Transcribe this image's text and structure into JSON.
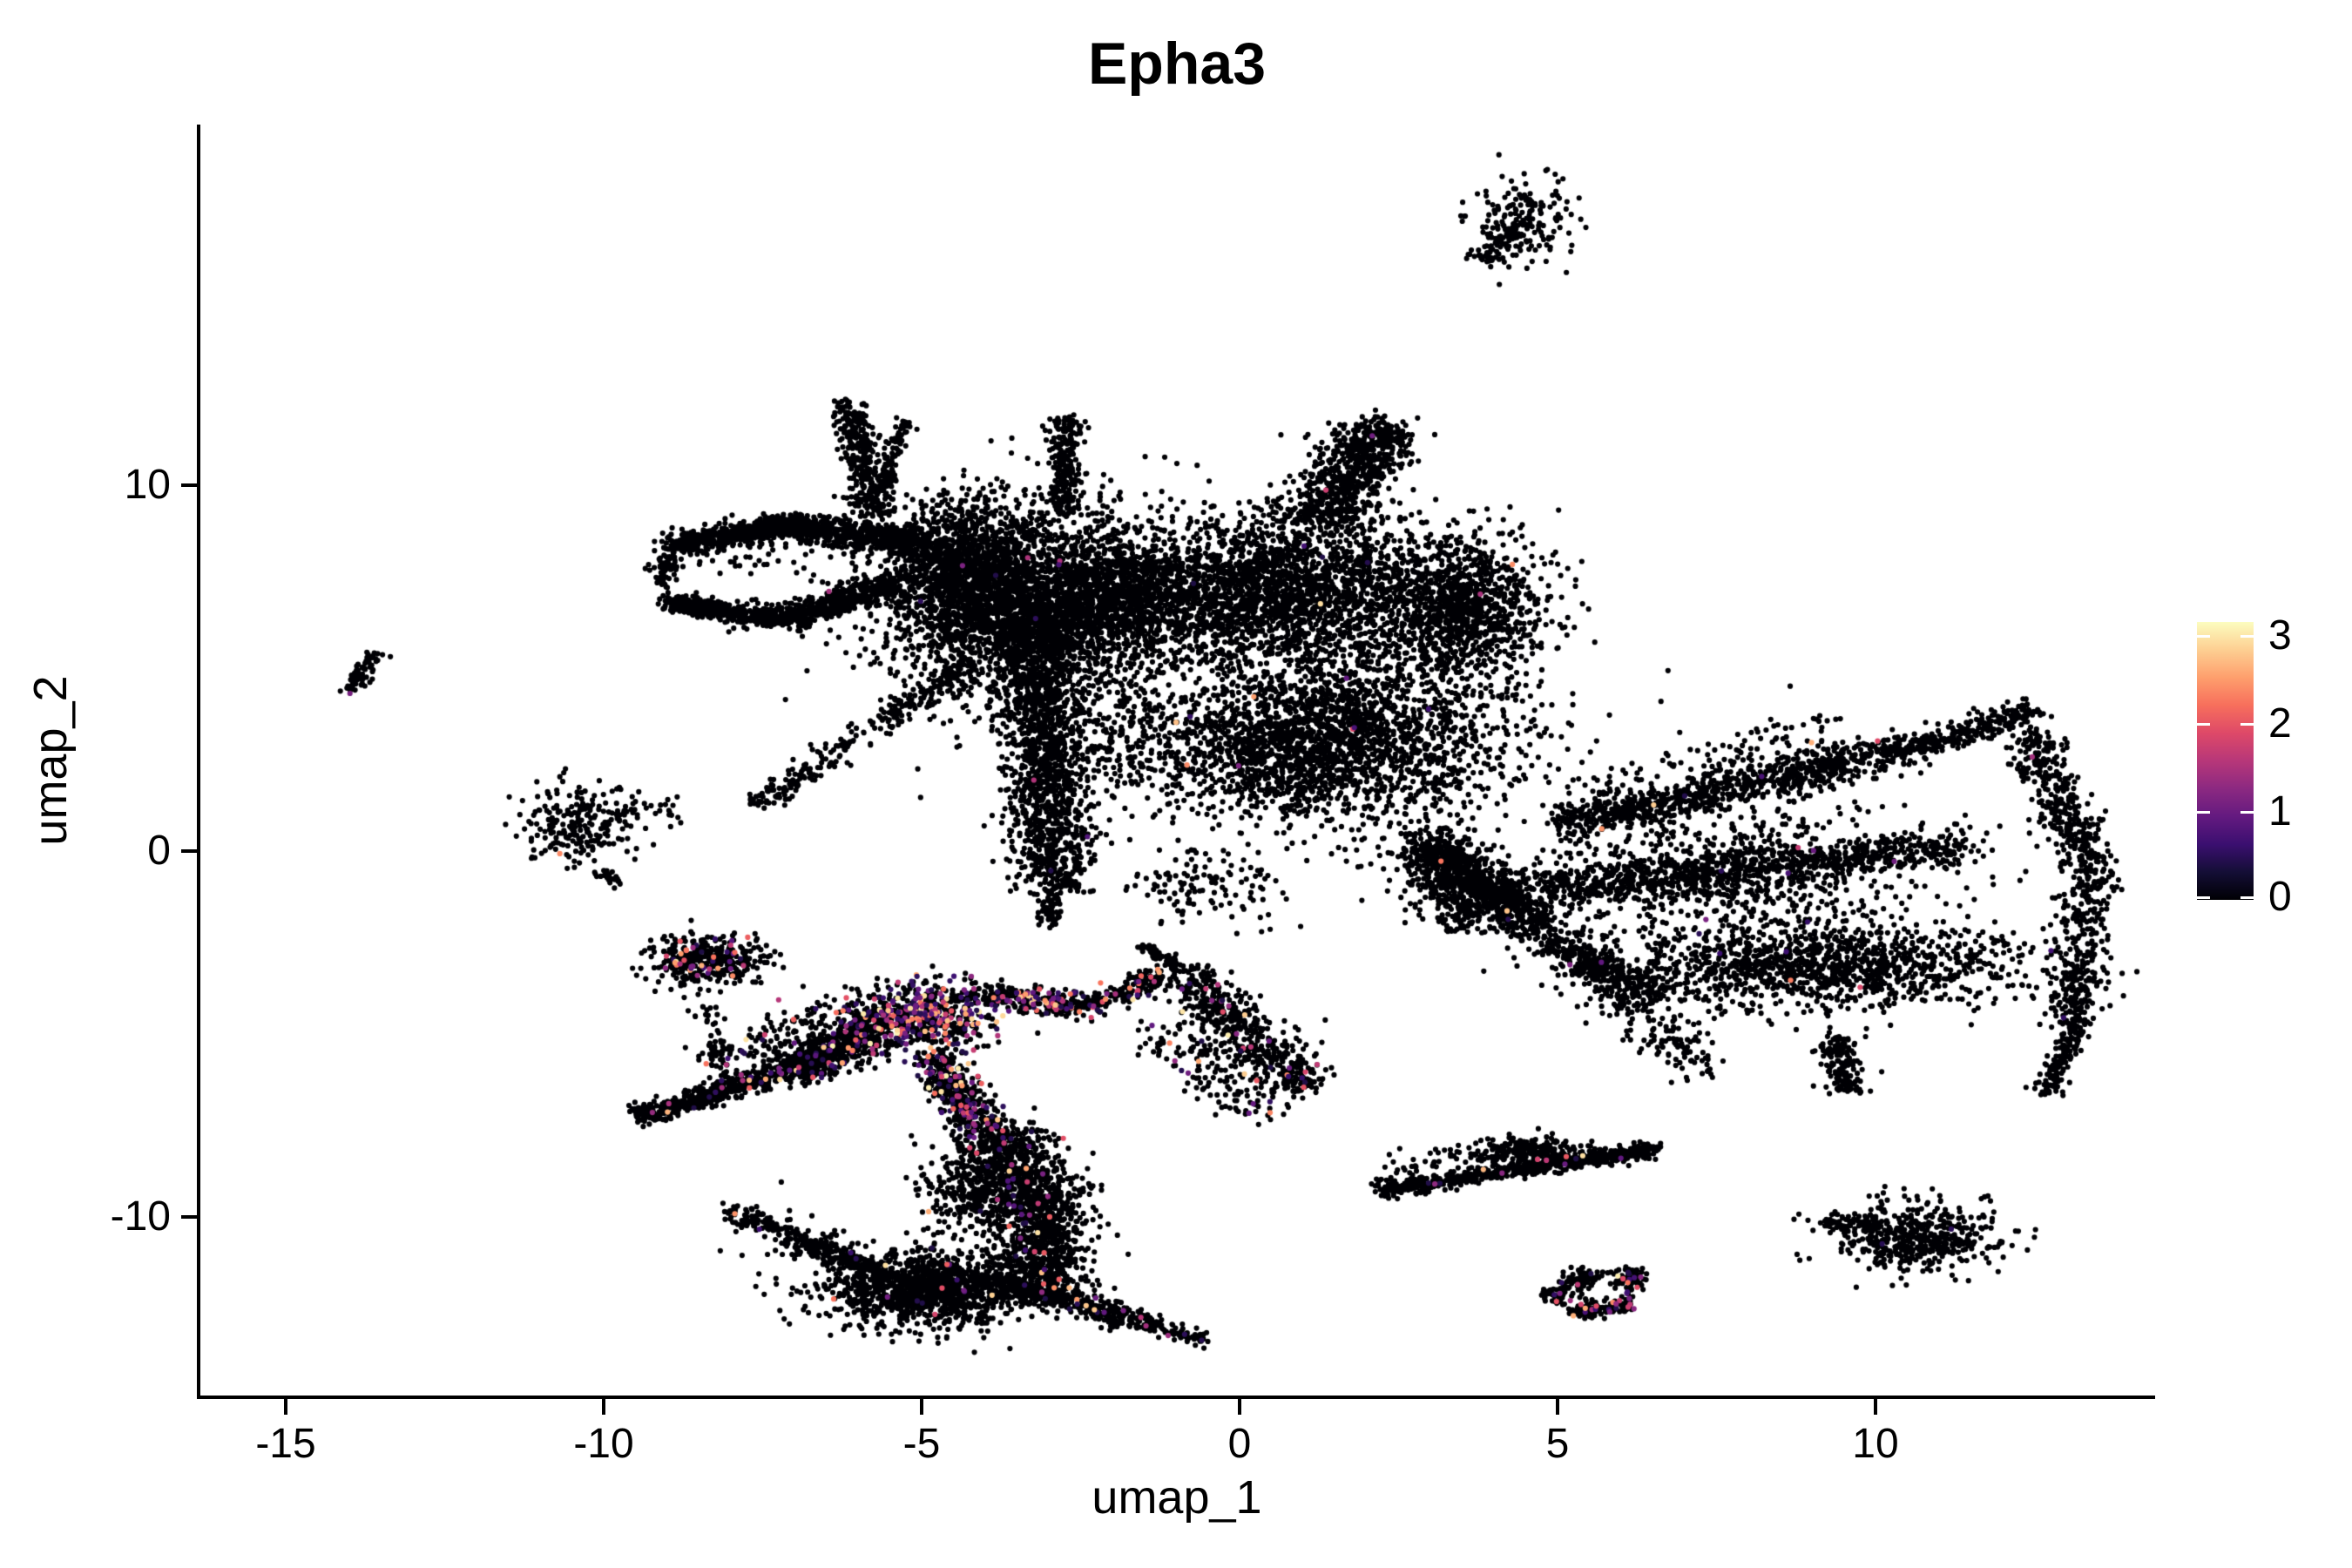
{
  "title": "Epha3",
  "axes": {
    "x": {
      "label": "umap_1",
      "tick_labels": [
        "-15",
        "-10",
        "-5",
        "0",
        "5",
        "10"
      ],
      "tick_values": [
        -15,
        -10,
        -5,
        0,
        5,
        10
      ]
    },
    "y": {
      "label": "umap_2",
      "tick_labels": [
        "10",
        "0",
        "-10"
      ],
      "tick_values": [
        10,
        0,
        -10
      ]
    }
  },
  "colorbar": {
    "labels": [
      "3",
      "2",
      "1",
      "0"
    ],
    "tick_values": [
      3,
      2,
      1,
      0
    ],
    "min": 0,
    "max": 3.17,
    "colormap": "magma",
    "stops": [
      "#000004",
      "#140e36",
      "#3b0f70",
      "#641a80",
      "#8c2981",
      "#b73779",
      "#de4968",
      "#f76f5c",
      "#fe9f6d",
      "#fdcf92",
      "#fcfdbf"
    ]
  },
  "chart_data": {
    "type": "scatter",
    "title": "Epha3",
    "xlabel": "umap_1",
    "ylabel": "umap_2",
    "xlim": [
      -16.4,
      14.3
    ],
    "ylim": [
      -14.9,
      19.9
    ],
    "x_ticks": [
      -15,
      -10,
      -5,
      0,
      5,
      10
    ],
    "y_ticks": [
      10,
      0,
      -10
    ],
    "grid": false,
    "legend_position": "right",
    "point_color_zero": "#000004",
    "expression_range": [
      0,
      3.17
    ],
    "points": [
      {
        "x": -13.99,
        "y": 4.31,
        "v": 1.1
      },
      {
        "x": -10.69,
        "y": -0.07,
        "v": 2.4
      }
    ],
    "clusters": [
      {
        "kind": "blob",
        "x": 4.51,
        "y": 17.31,
        "sx": 0.36,
        "sy": 0.6,
        "n": 170,
        "expr": 0
      },
      {
        "kind": "stroke",
        "x1": 3.82,
        "y1": 16.12,
        "x2": 4.37,
        "y2": 17.12,
        "w": 0.13,
        "n": 70,
        "expr": 0
      },
      {
        "kind": "blob",
        "x": 5.03,
        "y": 17.26,
        "sx": 0.03,
        "sy": 0.03,
        "n": 2,
        "expr": 0
      },
      {
        "kind": "stroke",
        "x1": -14.01,
        "y1": 4.4,
        "x2": -13.56,
        "y2": 5.45,
        "w": 0.1,
        "n": 75,
        "expr": 0
      },
      {
        "kind": "blob",
        "x": -10.41,
        "y": 0.71,
        "sx": 0.42,
        "sy": 0.55,
        "n": 230,
        "expr": 0.004
      },
      {
        "kind": "stroke",
        "x1": -9.84,
        "y1": 0.93,
        "x2": -8.78,
        "y2": 1.21,
        "w": 0.18,
        "n": 28,
        "expr": 0
      },
      {
        "kind": "stroke",
        "x1": -10.08,
        "y1": -0.55,
        "x2": -9.73,
        "y2": -0.93,
        "w": 0.07,
        "n": 24,
        "expr": 0
      },
      {
        "kind": "stroke",
        "x1": -8.97,
        "y1": 8.31,
        "x2": -7.1,
        "y2": 8.9,
        "w": 0.16,
        "n": 520,
        "expr": 0.002
      },
      {
        "kind": "stroke",
        "x1": -7.1,
        "y1": 8.9,
        "x2": -4.9,
        "y2": 8.45,
        "w": 0.18,
        "n": 560,
        "expr": 0.002
      },
      {
        "kind": "blob",
        "x": -9.06,
        "y": 7.74,
        "sx": 0.1,
        "sy": 0.3,
        "n": 70,
        "expr": 0
      },
      {
        "kind": "blob",
        "x": -7.8,
        "y": 7.9,
        "sx": 0.5,
        "sy": 0.25,
        "n": 25,
        "expr": 0
      },
      {
        "kind": "stroke",
        "x1": -9.0,
        "y1": 6.79,
        "x2": -7.16,
        "y2": 6.31,
        "w": 0.15,
        "n": 430,
        "expr": 0.002
      },
      {
        "kind": "stroke",
        "x1": -7.16,
        "y1": 6.31,
        "x2": -5.38,
        "y2": 7.36,
        "w": 0.17,
        "n": 430,
        "expr": 0.002
      },
      {
        "kind": "stroke",
        "x1": -5.69,
        "y1": 9.21,
        "x2": -6.18,
        "y2": 12.26,
        "w": 0.15,
        "n": 330,
        "expr": 0.002
      },
      {
        "kind": "stroke",
        "x1": -5.62,
        "y1": 9.93,
        "x2": -5.25,
        "y2": 11.83,
        "w": 0.09,
        "n": 90,
        "expr": 0
      },
      {
        "kind": "blob",
        "x": -4.29,
        "y": 7.79,
        "sx": 0.65,
        "sy": 0.85,
        "n": 950,
        "expr": 0.002
      },
      {
        "kind": "blob",
        "x": -3.53,
        "y": 6.83,
        "sx": 1.15,
        "sy": 1.35,
        "n": 2400,
        "expr": 0.002
      },
      {
        "kind": "stroke",
        "x1": -4.15,
        "y1": 5.17,
        "x2": -7.58,
        "y2": 1.31,
        "w": 0.14,
        "n": 270,
        "expr": 0.002
      },
      {
        "kind": "stroke",
        "x1": -3.19,
        "y1": 6.6,
        "x2": -2.92,
        "y2": -1.02,
        "w": 0.33,
        "n": 1500,
        "expr": 0.002
      },
      {
        "kind": "stroke",
        "x1": -2.95,
        "y1": -1.02,
        "x2": -3.01,
        "y2": -1.98,
        "w": 0.1,
        "n": 60,
        "expr": 0
      },
      {
        "kind": "stroke",
        "x1": -2.75,
        "y1": 9.21,
        "x2": -2.75,
        "y2": 11.83,
        "w": 0.12,
        "n": 230,
        "expr": 0
      },
      {
        "kind": "blob",
        "x": -2.03,
        "y": 6.83,
        "sx": 0.5,
        "sy": 0.8,
        "n": 520,
        "expr": 0.002
      },
      {
        "kind": "blob",
        "x": 0.37,
        "y": 7.07,
        "sx": 1.5,
        "sy": 1.05,
        "n": 2700,
        "expr": 0.002
      },
      {
        "kind": "blob",
        "x": 1.33,
        "y": 3.02,
        "sx": 1.45,
        "sy": 1.15,
        "n": 2500,
        "expr": 0.002
      },
      {
        "kind": "blob",
        "x": 3.52,
        "y": 6.6,
        "sx": 0.65,
        "sy": 0.95,
        "n": 1000,
        "expr": 0.002
      },
      {
        "kind": "stroke",
        "x1": 1.19,
        "y1": 8.98,
        "x2": 2.29,
        "y2": 11.6,
        "w": 0.33,
        "n": 720,
        "expr": 0.002
      },
      {
        "kind": "stroke",
        "x1": 2.97,
        "y1": 0.4,
        "x2": 3.52,
        "y2": -1.98,
        "w": 0.33,
        "n": 430,
        "expr": 0.002
      },
      {
        "kind": "blob",
        "x": -0.59,
        "y": -1.02,
        "sx": 0.8,
        "sy": 0.5,
        "n": 130,
        "expr": 0
      },
      {
        "kind": "blob",
        "x": -1.82,
        "y": 3.02,
        "sx": 0.5,
        "sy": 0.9,
        "n": 160,
        "expr": 0
      },
      {
        "kind": "stroke",
        "x1": 3.18,
        "y1": 0.05,
        "x2": 4.62,
        "y2": -2.1,
        "w": 0.28,
        "n": 520,
        "expr": 0.004
      },
      {
        "kind": "stroke",
        "x1": 5.03,
        "y1": 0.64,
        "x2": 10.51,
        "y2": 2.79,
        "w": 0.26,
        "n": 850,
        "expr": 0.004
      },
      {
        "kind": "stroke",
        "x1": 5.5,
        "y1": 1.3,
        "x2": 9.5,
        "y2": 3.2,
        "w": 0.5,
        "n": 180,
        "expr": 0.004
      },
      {
        "kind": "stroke",
        "x1": 10.51,
        "y1": 2.79,
        "x2": 12.56,
        "y2": 3.86,
        "w": 0.18,
        "n": 240,
        "expr": 0.004
      },
      {
        "kind": "stroke",
        "x1": 12.43,
        "y1": 3.26,
        "x2": 13.38,
        "y2": -0.55,
        "w": 0.22,
        "n": 380,
        "expr": 0.004
      },
      {
        "kind": "stroke",
        "x1": 13.38,
        "y1": -0.55,
        "x2": 13.11,
        "y2": -4.83,
        "w": 0.2,
        "n": 330,
        "expr": 0.004
      },
      {
        "kind": "stroke",
        "x1": 13.11,
        "y1": -4.83,
        "x2": 12.7,
        "y2": -6.62,
        "w": 0.11,
        "n": 120,
        "expr": 0.004
      },
      {
        "kind": "stroke",
        "x1": 3.8,
        "y1": -1.26,
        "x2": 11.47,
        "y2": 0.17,
        "w": 0.28,
        "n": 950,
        "expr": 0.004
      },
      {
        "kind": "blob",
        "x": 9.14,
        "y": -3.17,
        "sx": 1.7,
        "sy": 0.62,
        "n": 1300,
        "expr": 0.004
      },
      {
        "kind": "stroke",
        "x1": 9.34,
        "y1": -5.07,
        "x2": 9.55,
        "y2": -6.62,
        "w": 0.16,
        "n": 150,
        "expr": 0
      },
      {
        "kind": "stroke",
        "x1": 5.3,
        "y1": -2.93,
        "x2": 7.36,
        "y2": -6.02,
        "w": 0.28,
        "n": 220,
        "expr": 0.004
      },
      {
        "kind": "stroke",
        "x1": 4.62,
        "y1": -2.1,
        "x2": 6.53,
        "y2": -3.88,
        "w": 0.24,
        "n": 300,
        "expr": 0.004
      },
      {
        "kind": "blob",
        "x": 7.77,
        "y": -0.55,
        "sx": 1.6,
        "sy": 0.85,
        "n": 650,
        "expr": 0.004
      },
      {
        "kind": "blob",
        "x": -8.37,
        "y": -2.98,
        "sx": 0.45,
        "sy": 0.32,
        "n": 380,
        "expr": 0.12
      },
      {
        "kind": "stroke",
        "x1": -8.53,
        "y1": -3.88,
        "x2": -7.99,
        "y2": -6.5,
        "w": 0.11,
        "n": 55,
        "expr": 0.08
      },
      {
        "kind": "stroke",
        "x1": -9.49,
        "y1": -7.26,
        "x2": -7.16,
        "y2": -6.02,
        "w": 0.15,
        "n": 430,
        "expr": 0.03
      },
      {
        "kind": "stroke",
        "x1": -7.16,
        "y1": -6.02,
        "x2": -5.8,
        "y2": -5.07,
        "w": 0.24,
        "n": 580,
        "expr": 0.06
      },
      {
        "kind": "stroke",
        "x1": -8.26,
        "y1": -5.67,
        "x2": -6.34,
        "y2": -4.48,
        "w": 0.3,
        "n": 130,
        "expr": 0.15
      },
      {
        "kind": "blob",
        "x": -6.0,
        "y": -4.79,
        "sx": 0.13,
        "sy": 0.1,
        "n": 45,
        "expr": 0.05
      },
      {
        "kind": "blob",
        "x": -5.08,
        "y": -4.55,
        "sx": 0.6,
        "sy": 0.46,
        "n": 700,
        "expr": 0.3
      },
      {
        "kind": "stroke",
        "x1": -4.29,
        "y1": -3.88,
        "x2": -2.37,
        "y2": -4.24,
        "w": 0.18,
        "n": 270,
        "expr": 0.25
      },
      {
        "kind": "stroke",
        "x1": -2.37,
        "y1": -4.24,
        "x2": -1.27,
        "y2": -3.41,
        "w": 0.14,
        "n": 140,
        "expr": 0.15
      },
      {
        "kind": "stroke",
        "x1": -4.84,
        "y1": -5.67,
        "x2": -3.95,
        "y2": -7.69,
        "w": 0.2,
        "n": 400,
        "expr": 0.18
      },
      {
        "kind": "stroke",
        "x1": -3.95,
        "y1": -7.69,
        "x2": -2.99,
        "y2": -9.95,
        "w": 0.42,
        "n": 780,
        "expr": 0.04
      },
      {
        "kind": "stroke",
        "x1": -2.99,
        "y1": -9.95,
        "x2": -3.26,
        "y2": -12.21,
        "w": 0.38,
        "n": 680,
        "expr": 0.02
      },
      {
        "kind": "blob",
        "x": -4.9,
        "y": -11.98,
        "sx": 0.8,
        "sy": 0.52,
        "n": 1250,
        "expr": 0.01
      },
      {
        "kind": "blob",
        "x": -4.15,
        "y": -9.36,
        "sx": 0.42,
        "sy": 0.52,
        "n": 240,
        "expr": 0.03
      },
      {
        "kind": "stroke",
        "x1": -8.01,
        "y1": -9.83,
        "x2": -5.73,
        "y2": -11.5,
        "w": 0.14,
        "n": 270,
        "expr": 0.01
      },
      {
        "kind": "stroke",
        "x1": -8.01,
        "y1": -9.83,
        "x2": -5.73,
        "y2": -11.5,
        "w": 0.4,
        "n": 70,
        "expr": 0.02
      },
      {
        "kind": "stroke",
        "x1": -3.53,
        "y1": -11.86,
        "x2": -1.27,
        "y2": -13.0,
        "w": 0.15,
        "n": 300,
        "expr": 0.04
      },
      {
        "kind": "stroke",
        "x1": -1.27,
        "y1": -13.0,
        "x2": -0.43,
        "y2": -13.41,
        "w": 0.09,
        "n": 55,
        "expr": 0.08
      },
      {
        "kind": "stroke",
        "x1": -0.97,
        "y1": -3.24,
        "x2": 1.06,
        "y2": -6.5,
        "w": 0.27,
        "n": 540,
        "expr": 0.07
      },
      {
        "kind": "stroke",
        "x1": -1.27,
        "y1": -4.83,
        "x2": 0.37,
        "y2": -7.21,
        "w": 0.33,
        "n": 150,
        "expr": 0.05
      },
      {
        "kind": "stroke",
        "x1": -1.55,
        "y1": -2.57,
        "x2": -0.97,
        "y2": -3.24,
        "w": 0.09,
        "n": 55,
        "expr": 0.02
      },
      {
        "kind": "stroke",
        "x1": 2.12,
        "y1": -9.31,
        "x2": 6.6,
        "y2": -8.12,
        "w": 0.11,
        "n": 620,
        "expr": 0.015
      },
      {
        "kind": "blob",
        "x": 4.59,
        "y": -8.21,
        "sx": 0.38,
        "sy": 0.21,
        "n": 210,
        "expr": 0.01
      },
      {
        "kind": "stroke",
        "x1": 2.2,
        "y1": -8.9,
        "x2": 4.0,
        "y2": -8.35,
        "w": 0.3,
        "n": 70,
        "expr": 0.01
      },
      {
        "kind": "stroke",
        "x1": 4.86,
        "y1": -12.26,
        "x2": 5.58,
        "y2": -11.55,
        "w": 0.14,
        "n": 120,
        "expr": 0.12
      },
      {
        "kind": "stroke",
        "x1": 5.16,
        "y1": -12.57,
        "x2": 6.12,
        "y2": -12.41,
        "w": 0.11,
        "n": 120,
        "expr": 0.18
      },
      {
        "kind": "blob",
        "x": 6.15,
        "y": -11.69,
        "sx": 0.14,
        "sy": 0.2,
        "n": 80,
        "expr": 0.18
      },
      {
        "kind": "blob",
        "x": 10.71,
        "y": -10.55,
        "sx": 0.7,
        "sy": 0.48,
        "n": 460,
        "expr": 0.003
      },
      {
        "kind": "stroke",
        "x1": 9.27,
        "y1": -10.07,
        "x2": 10.1,
        "y2": -10.21,
        "w": 0.11,
        "n": 70,
        "expr": 0
      },
      {
        "kind": "blob",
        "x": 9.15,
        "y": -10.15,
        "sx": 0.1,
        "sy": 0.05,
        "n": 3,
        "expr": 0
      }
    ]
  }
}
